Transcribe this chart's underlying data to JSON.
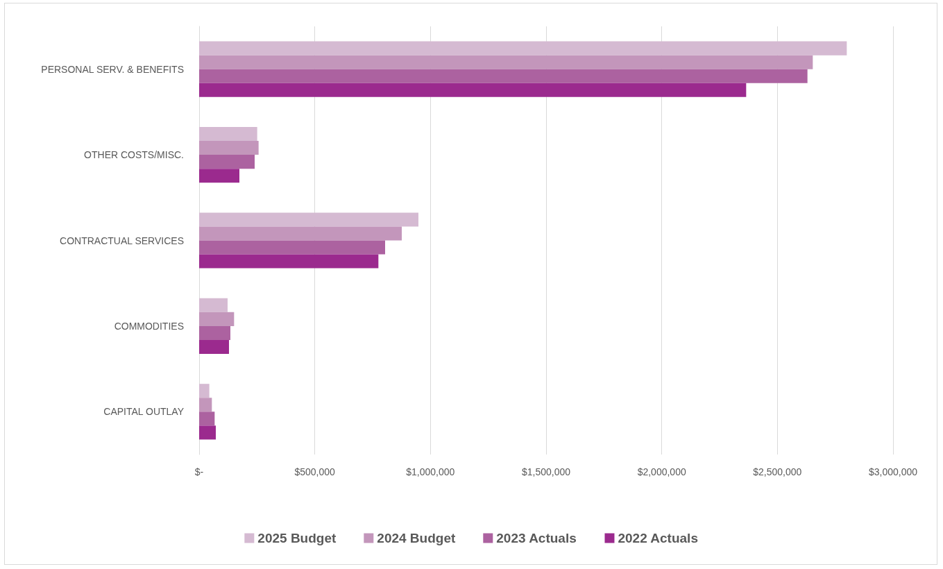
{
  "chart_data": {
    "type": "bar",
    "orientation": "horizontal",
    "categories": [
      "PERSONAL SERV. & BENEFITS",
      "OTHER COSTS/MISC.",
      "CONTRACTUAL SERVICES",
      "COMMODITIES",
      "CAPITAL OUTLAY"
    ],
    "series": [
      {
        "name": "2025 Budget",
        "color": "#d5bad2",
        "values": [
          2800000,
          251000,
          948000,
          123000,
          44000
        ]
      },
      {
        "name": "2024 Budget",
        "color": "#c396bb",
        "values": [
          2653000,
          257000,
          876000,
          151000,
          55000
        ]
      },
      {
        "name": "2023 Actuals",
        "color": "#ac62a0",
        "values": [
          2630000,
          240000,
          804000,
          135000,
          67000
        ]
      },
      {
        "name": "2022 Actuals",
        "color": "#9b2a8e",
        "values": [
          2365000,
          174000,
          775000,
          129000,
          72000
        ]
      }
    ],
    "xlim": [
      0,
      3000000
    ],
    "xticks": [
      {
        "value": 0,
        "label": "$-"
      },
      {
        "value": 500000,
        "label": "$500,000"
      },
      {
        "value": 1000000,
        "label": "$1,000,000"
      },
      {
        "value": 1500000,
        "label": "$1,500,000"
      },
      {
        "value": 2000000,
        "label": "$2,000,000"
      },
      {
        "value": 2500000,
        "label": "$2,500,000"
      },
      {
        "value": 3000000,
        "label": "$3,000,000"
      }
    ],
    "grid": "x",
    "legend": "bottom"
  }
}
